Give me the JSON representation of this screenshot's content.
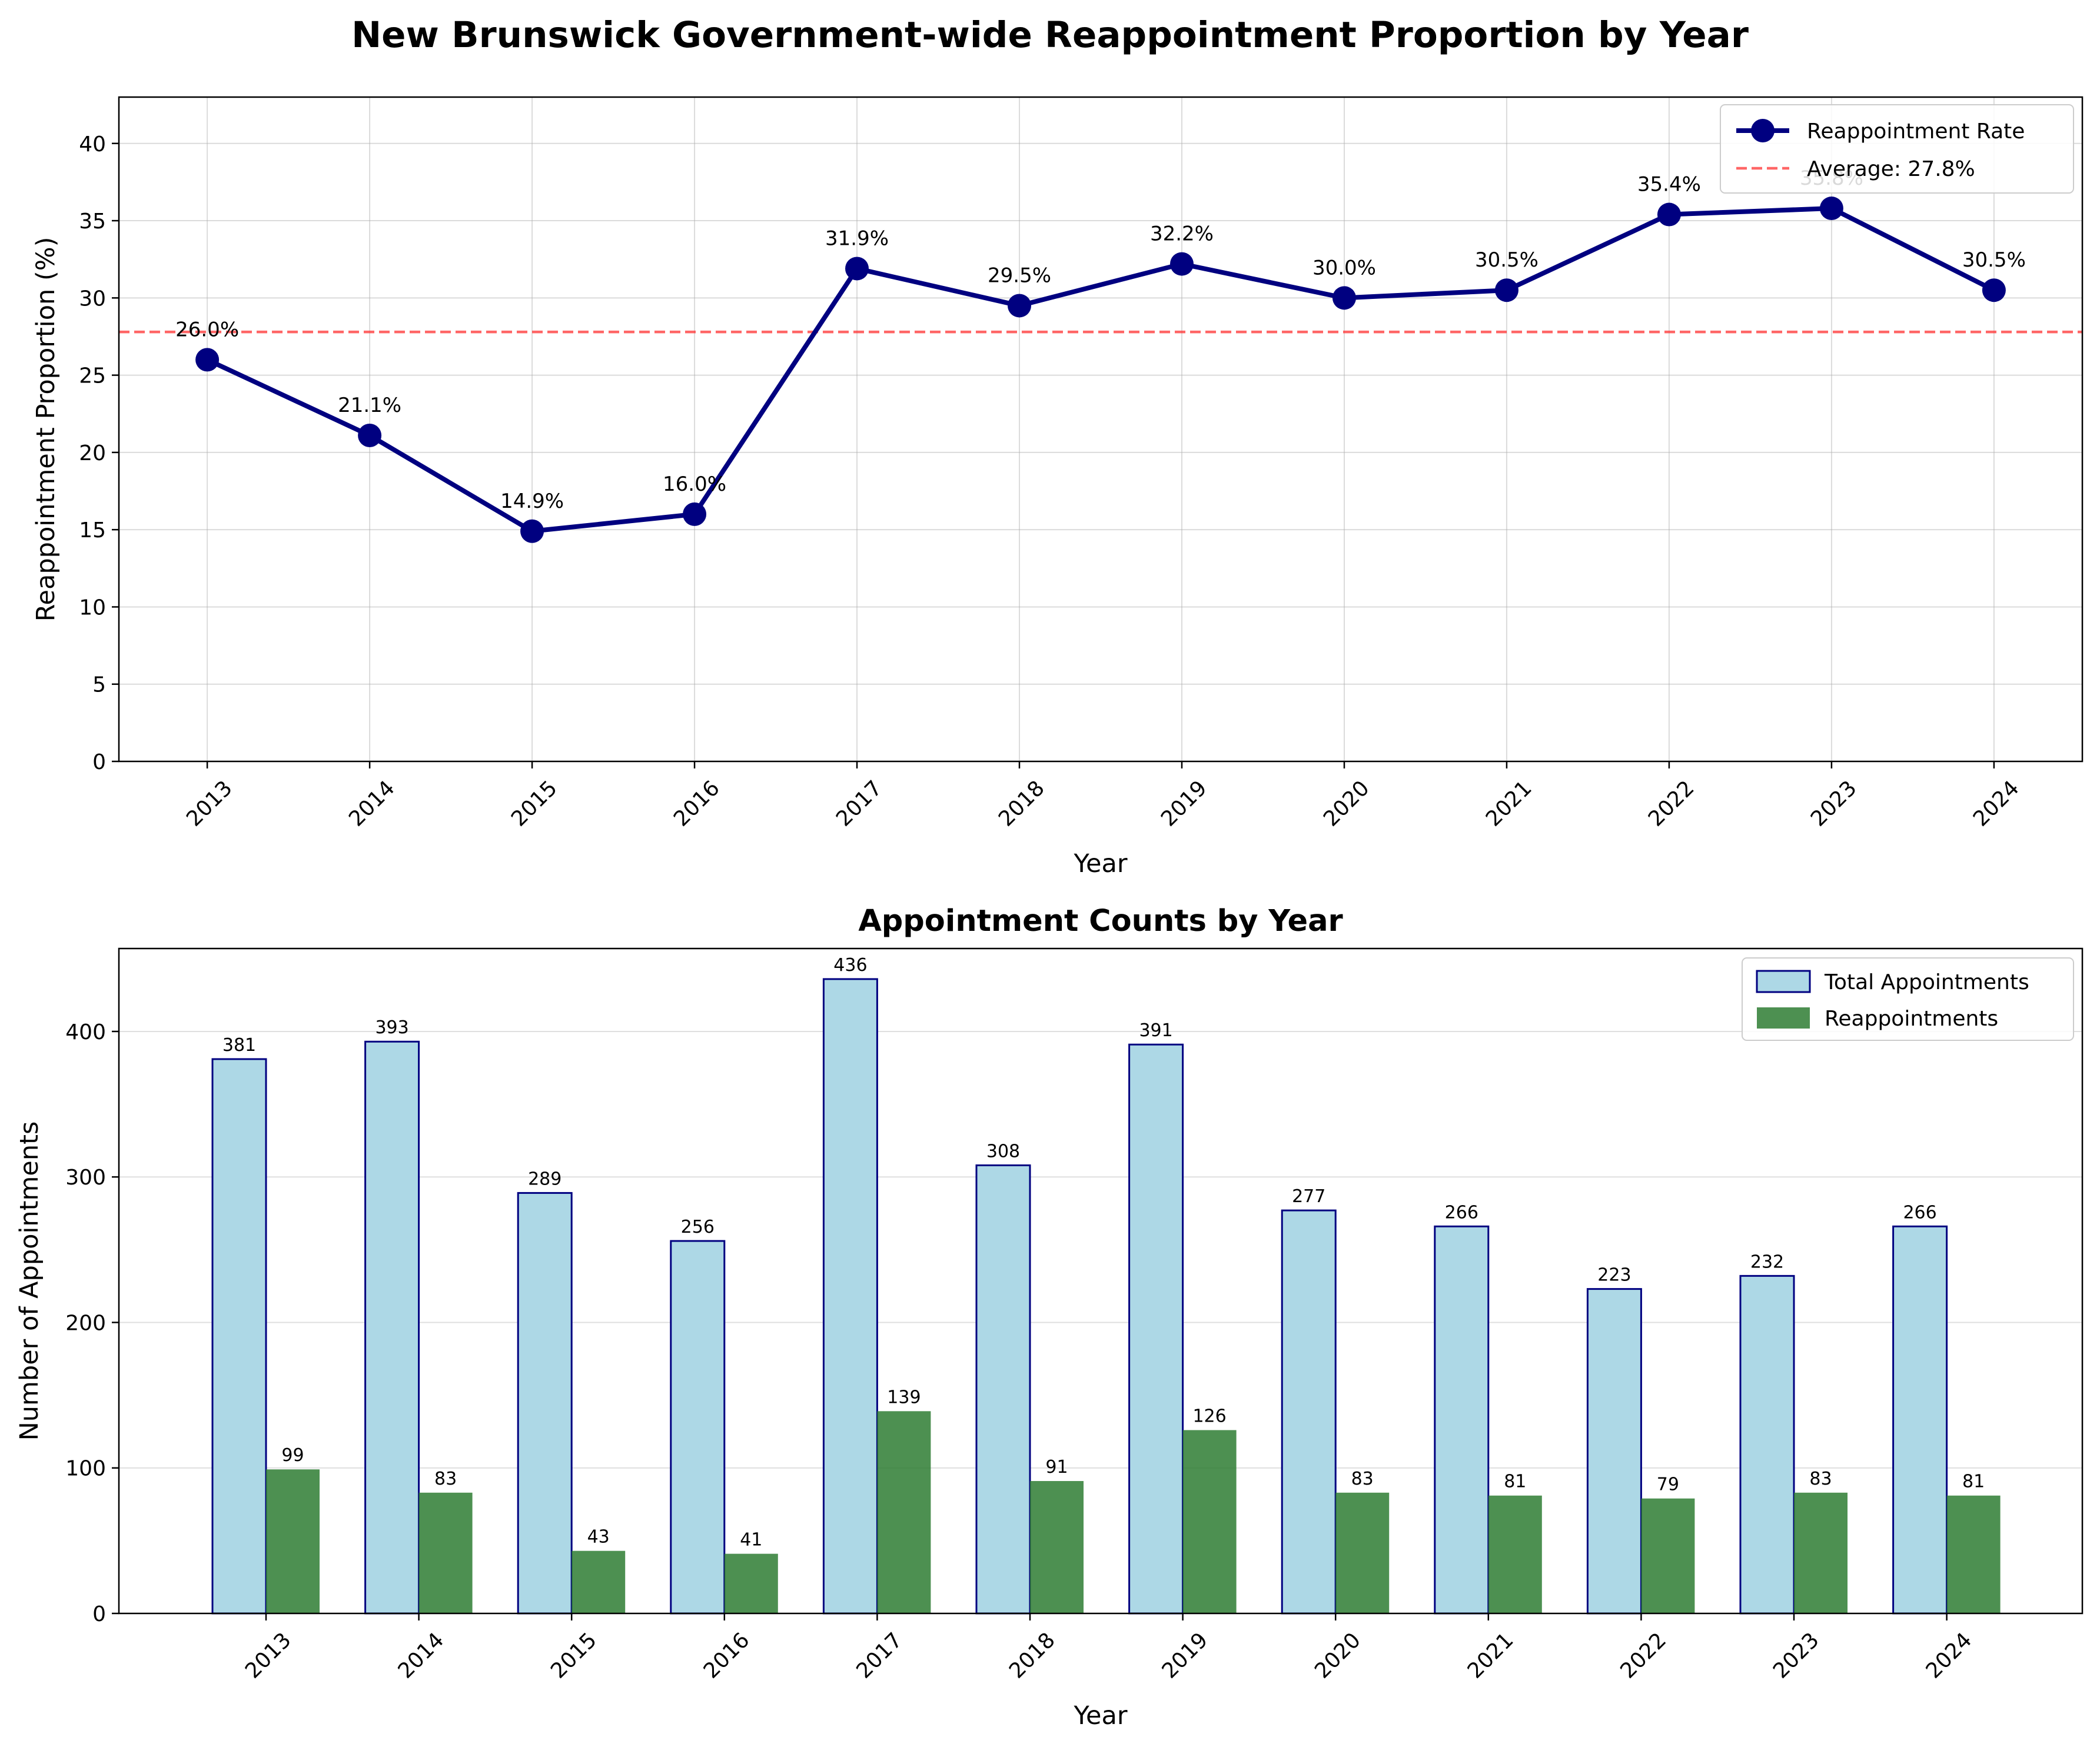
{
  "figure": {
    "title": "New Brunswick Government-wide Reappointment Proportion by Year"
  },
  "chart_data": [
    {
      "type": "line",
      "xlabel": "Year",
      "ylabel": "Reappointment Proportion (%)",
      "categories": [
        "2013",
        "2014",
        "2015",
        "2016",
        "2017",
        "2018",
        "2019",
        "2020",
        "2021",
        "2022",
        "2023",
        "2024"
      ],
      "series": [
        {
          "name": "Reappointment Rate",
          "values": [
            26.0,
            21.1,
            14.9,
            16.0,
            31.9,
            29.5,
            32.2,
            30.0,
            30.5,
            35.4,
            35.8,
            30.5
          ],
          "labels": [
            "26.0%",
            "21.1%",
            "14.9%",
            "16.0%",
            "31.9%",
            "29.5%",
            "32.2%",
            "30.0%",
            "30.5%",
            "35.4%",
            "35.8%",
            "30.5%"
          ],
          "color": "#000080"
        }
      ],
      "reference_line": {
        "name": "Average: 27.8%",
        "value": 27.8,
        "color": "#ff3333"
      },
      "ylim": [
        0,
        43
      ],
      "yticks": [
        "0",
        "5",
        "10",
        "15",
        "20",
        "25",
        "30",
        "35",
        "40"
      ],
      "grid": true,
      "legend": "upper-right"
    },
    {
      "type": "bar",
      "title": "Appointment Counts by Year",
      "xlabel": "Year",
      "ylabel": "Number of Appointments",
      "categories": [
        "2013",
        "2014",
        "2015",
        "2016",
        "2017",
        "2018",
        "2019",
        "2020",
        "2021",
        "2022",
        "2023",
        "2024"
      ],
      "series": [
        {
          "name": "Total Appointments",
          "values": [
            381,
            393,
            289,
            256,
            436,
            308,
            391,
            277,
            266,
            223,
            232,
            266
          ],
          "color": "#add8e6",
          "edge_color": "#000080"
        },
        {
          "name": "Reappointments",
          "values": [
            99,
            83,
            43,
            41,
            139,
            91,
            126,
            83,
            81,
            79,
            83,
            81
          ],
          "color": "#2e7d32"
        }
      ],
      "ylim": [
        0,
        457
      ],
      "yticks": [
        "0",
        "100",
        "200",
        "300",
        "400"
      ],
      "grid": true,
      "legend": "upper-right"
    }
  ]
}
